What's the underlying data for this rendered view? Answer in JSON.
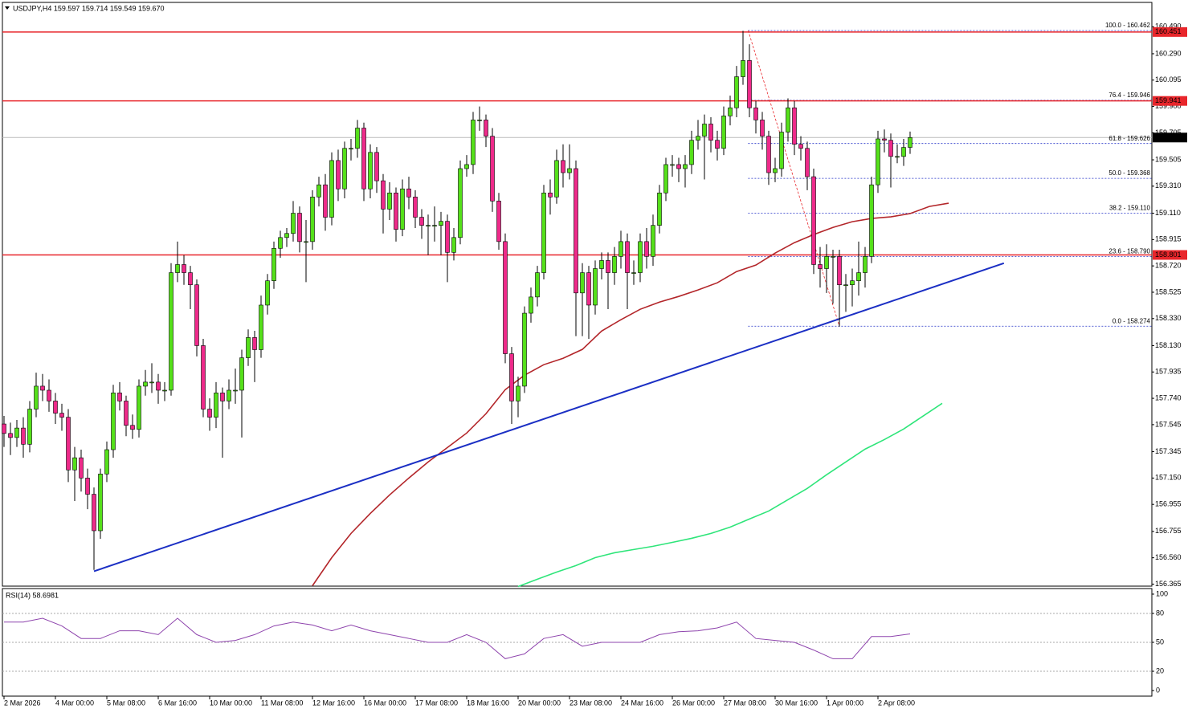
{
  "chart_data": {
    "type": "candlestick",
    "title": "USDJPY,H4 159.597 159.714 159.549 159.670",
    "categories": [
      "2 Mar 2026",
      null,
      null,
      null,
      null,
      null,
      null,
      null,
      "4 Mar 00:00",
      null,
      null,
      null,
      null,
      null,
      null,
      null,
      "5 Mar 08:00",
      null,
      null,
      null,
      null,
      null,
      null,
      null,
      "6 Mar 16:00",
      null,
      null,
      null,
      null,
      null,
      null,
      null,
      "10 Mar 00:00",
      null,
      null,
      null,
      null,
      null,
      null,
      null,
      "11 Mar 08:00",
      null,
      null,
      null,
      null,
      null,
      null,
      null,
      "12 Mar 16:00",
      null,
      null,
      null,
      null,
      null,
      null,
      null,
      "16 Mar 00:00",
      null,
      null,
      null,
      null,
      null,
      null,
      null,
      "17 Mar 08:00",
      null,
      null,
      null,
      null,
      null,
      null,
      null,
      "18 Mar 16:00",
      null,
      null,
      null,
      null,
      null,
      null,
      null,
      "20 Mar 00:00",
      null,
      null,
      null,
      null,
      null,
      null,
      null,
      "23 Mar 08:00",
      null,
      null,
      null,
      null,
      null,
      null,
      null,
      "24 Mar 16:00",
      null,
      null,
      null,
      null,
      null,
      null,
      null,
      "26 Mar 00:00",
      null,
      null,
      null,
      null,
      null,
      null,
      null,
      "27 Mar 08:00",
      null,
      null,
      null,
      null,
      null,
      null,
      null,
      "30 Mar 16:00",
      null,
      null,
      null,
      null,
      null,
      null,
      null,
      "1 Apr 00:00",
      null,
      null,
      null,
      null,
      null,
      null,
      null,
      "2 Apr 08:00",
      null,
      null,
      null,
      null,
      null
    ],
    "open": [
      157.55,
      157.48,
      157.45,
      157.52,
      157.4,
      157.66,
      157.83,
      157.8,
      157.72,
      157.63,
      157.6,
      157.21,
      157.3,
      157.15,
      157.03,
      156.76,
      157.18,
      157.36,
      157.78,
      157.72,
      157.54,
      157.51,
      157.83,
      157.86,
      157.86,
      157.8,
      157.8,
      158.67,
      158.73,
      158.67,
      158.58,
      158.13,
      157.66,
      157.6,
      157.78,
      157.72,
      157.8,
      157.8,
      158.04,
      158.19,
      158.1,
      158.43,
      158.61,
      158.85,
      158.93,
      158.96,
      159.11,
      158.9,
      158.9,
      159.23,
      159.32,
      159.08,
      159.5,
      159.29,
      159.59,
      159.59,
      159.74,
      159.29,
      159.56,
      159.35,
      159.14,
      159.26,
      158.99,
      159.29,
      159.23,
      159.08,
      159.02,
      159.02,
      159.02,
      159.05,
      158.82,
      158.93,
      159.44,
      159.47,
      159.8,
      159.8,
      159.68,
      159.2,
      158.9,
      158.07,
      157.72,
      157.83,
      158.37,
      158.49,
      158.67,
      159.26,
      159.23,
      159.5,
      159.41,
      159.44,
      158.52,
      158.67,
      158.43,
      158.7,
      158.76,
      158.67,
      158.79,
      158.9,
      158.67,
      158.67,
      158.9,
      158.79,
      159.02,
      159.26,
      159.47,
      159.47,
      159.44,
      159.47,
      159.65,
      159.68,
      159.77,
      159.65,
      159.59,
      159.83,
      159.89,
      160.12,
      160.24,
      159.89,
      159.8,
      159.68,
      159.41,
      159.44,
      159.71,
      159.89,
      159.62,
      159.59,
      159.38,
      158.73,
      158.7,
      158.79,
      158.79,
      158.58,
      158.58,
      158.61,
      158.67,
      158.79,
      159.32,
      159.66,
      159.65,
      159.53,
      159.53,
      159.597
    ],
    "high": [
      157.61,
      157.56,
      157.58,
      157.6,
      157.72,
      157.93,
      157.92,
      157.88,
      157.78,
      157.7,
      157.66,
      157.38,
      157.36,
      157.22,
      157.08,
      157.22,
      157.42,
      157.84,
      157.86,
      157.76,
      157.62,
      157.88,
      157.95,
      158.0,
      157.92,
      157.86,
      158.74,
      158.9,
      158.8,
      158.72,
      158.62,
      158.18,
      157.74,
      157.86,
      157.82,
      157.88,
      157.96,
      158.1,
      158.25,
      158.24,
      158.5,
      158.66,
      158.9,
      158.98,
      159.0,
      159.2,
      159.16,
      159.06,
      159.28,
      159.38,
      159.4,
      159.56,
      159.58,
      159.64,
      159.66,
      159.8,
      159.78,
      159.62,
      159.6,
      159.4,
      159.34,
      159.3,
      159.36,
      159.38,
      159.28,
      159.14,
      159.1,
      159.16,
      159.12,
      159.1,
      159.0,
      159.5,
      159.54,
      159.86,
      159.9,
      159.84,
      159.74,
      159.26,
      158.96,
      158.12,
      157.9,
      158.42,
      158.56,
      158.72,
      159.32,
      159.36,
      159.58,
      159.62,
      159.62,
      159.5,
      158.74,
      158.72,
      158.76,
      158.82,
      158.82,
      158.86,
      158.98,
      158.96,
      158.76,
      158.96,
      159.0,
      159.1,
      159.32,
      159.52,
      159.54,
      159.52,
      159.54,
      159.72,
      159.8,
      159.84,
      159.82,
      159.72,
      159.9,
      159.98,
      160.2,
      160.46,
      160.36,
      159.94,
      159.86,
      159.72,
      159.52,
      159.78,
      159.96,
      159.94,
      159.68,
      159.64,
      159.44,
      158.86,
      158.88,
      158.84,
      158.84,
      158.66,
      158.7,
      158.9,
      158.86,
      159.38,
      159.72,
      159.73,
      159.7,
      159.62,
      159.66,
      159.714
    ],
    "low": [
      157.38,
      157.32,
      157.38,
      157.3,
      157.34,
      157.6,
      157.72,
      157.64,
      157.55,
      157.5,
      157.12,
      156.98,
      157.05,
      156.92,
      156.47,
      156.7,
      157.12,
      157.3,
      157.65,
      157.46,
      157.44,
      157.45,
      157.76,
      157.78,
      157.7,
      157.72,
      157.76,
      158.6,
      158.58,
      158.4,
      158.05,
      157.6,
      157.5,
      157.52,
      157.3,
      157.66,
      157.7,
      157.45,
      157.98,
      157.86,
      158.04,
      158.36,
      158.55,
      158.78,
      158.86,
      158.9,
      158.82,
      158.6,
      158.84,
      159.16,
      158.98,
      159.02,
      159.2,
      159.22,
      159.5,
      159.52,
      159.2,
      159.22,
      159.26,
      158.96,
      159.06,
      158.9,
      158.94,
      159.14,
      159.0,
      158.92,
      158.8,
      158.9,
      158.8,
      158.6,
      158.76,
      158.88,
      159.38,
      159.4,
      159.72,
      159.6,
      159.12,
      158.84,
      158.0,
      157.55,
      157.6,
      157.78,
      158.3,
      158.42,
      158.62,
      159.1,
      159.18,
      159.3,
      159.36,
      158.2,
      158.2,
      158.18,
      158.36,
      158.62,
      158.4,
      158.58,
      158.7,
      158.4,
      158.58,
      158.6,
      158.7,
      158.72,
      158.96,
      159.2,
      159.38,
      159.34,
      159.3,
      159.4,
      159.58,
      159.36,
      159.56,
      159.5,
      159.54,
      159.76,
      159.82,
      160.06,
      159.82,
      159.7,
      159.58,
      159.32,
      159.34,
      159.38,
      159.64,
      159.54,
      159.5,
      159.28,
      158.66,
      158.56,
      158.52,
      158.44,
      158.27,
      158.38,
      158.42,
      158.5,
      158.56,
      158.74,
      159.26,
      159.56,
      159.3,
      159.48,
      159.46,
      159.549
    ],
    "close": [
      157.48,
      157.45,
      157.52,
      157.4,
      157.66,
      157.83,
      157.8,
      157.72,
      157.63,
      157.6,
      157.21,
      157.3,
      157.15,
      157.03,
      156.76,
      157.18,
      157.36,
      157.78,
      157.72,
      157.54,
      157.51,
      157.83,
      157.86,
      157.86,
      157.8,
      157.8,
      158.67,
      158.73,
      158.67,
      158.58,
      158.13,
      157.66,
      157.6,
      157.78,
      157.72,
      157.8,
      157.8,
      158.04,
      158.19,
      158.1,
      158.43,
      158.61,
      158.85,
      158.93,
      158.96,
      159.11,
      158.9,
      158.9,
      159.23,
      159.32,
      159.08,
      159.5,
      159.29,
      159.59,
      159.59,
      159.74,
      159.29,
      159.56,
      159.35,
      159.14,
      159.26,
      158.99,
      159.29,
      159.23,
      159.08,
      159.02,
      159.02,
      159.02,
      159.05,
      158.82,
      158.93,
      159.44,
      159.47,
      159.8,
      159.8,
      159.68,
      159.2,
      158.9,
      158.07,
      157.72,
      157.83,
      158.37,
      158.49,
      158.67,
      159.26,
      159.23,
      159.5,
      159.41,
      159.44,
      158.52,
      158.67,
      158.43,
      158.7,
      158.76,
      158.67,
      158.79,
      158.9,
      158.67,
      158.67,
      158.9,
      158.79,
      159.02,
      159.26,
      159.47,
      159.47,
      159.44,
      159.47,
      159.65,
      159.68,
      159.77,
      159.65,
      159.59,
      159.83,
      159.89,
      160.12,
      160.24,
      159.89,
      159.8,
      159.68,
      159.41,
      159.44,
      159.71,
      159.89,
      159.62,
      159.59,
      159.38,
      158.73,
      158.7,
      158.79,
      158.79,
      158.58,
      158.58,
      158.61,
      158.67,
      158.79,
      159.32,
      159.66,
      159.65,
      159.53,
      159.53,
      159.597,
      159.67
    ],
    "bull_color": "#55e01a",
    "bear_color": "#ee2a8a",
    "ylim": [
      156.35,
      160.67
    ],
    "yticks": [
      {
        "value": 160.49,
        "label": "160.490"
      },
      {
        "value": 160.29,
        "label": "160.290"
      },
      160.095,
      {
        "value": 159.9,
        "label": "159.900"
      },
      159.705,
      159.505,
      {
        "value": 159.31,
        "label": "159.310"
      },
      {
        "value": 159.11,
        "label": "159.110"
      },
      158.915,
      {
        "value": 158.72,
        "label": "158.720"
      },
      158.525,
      {
        "value": 158.33,
        "label": "158.330"
      },
      {
        "value": 158.13,
        "label": "158.130"
      },
      157.935,
      {
        "value": 157.74,
        "label": "157.740"
      },
      157.545,
      157.345,
      {
        "value": 157.15,
        "label": "157.150"
      },
      156.955,
      156.755,
      {
        "value": 156.56,
        "label": "156.560"
      },
      156.365
    ],
    "overlays": [
      {
        "color": "#b3262a",
        "x": [
          48,
          51,
          54,
          57,
          60,
          63,
          66,
          69,
          72,
          75,
          78,
          81,
          84,
          87,
          90,
          93,
          96,
          99,
          102,
          105,
          108,
          111,
          114,
          117,
          120,
          123,
          126,
          129,
          132,
          135,
          138,
          141,
          144,
          147
        ],
        "values": [
          156.353,
          156.561,
          156.74,
          156.888,
          157.025,
          157.15,
          157.269,
          157.376,
          157.483,
          157.626,
          157.804,
          157.911,
          157.989,
          158.036,
          158.102,
          158.238,
          158.322,
          158.399,
          158.452,
          158.494,
          158.542,
          158.595,
          158.678,
          158.726,
          158.815,
          158.892,
          158.952,
          159.005,
          159.047,
          159.071,
          159.083,
          159.107,
          159.16,
          159.184
        ]
      },
      {
        "color": "#2fe57a",
        "x": [
          80,
          83,
          86,
          89,
          92,
          95,
          98,
          101,
          104,
          107,
          110,
          113,
          116,
          119,
          122,
          125,
          128,
          131,
          134,
          137,
          140,
          143,
          146
        ],
        "values": [
          156.347,
          156.401,
          156.454,
          156.502,
          156.561,
          156.597,
          156.621,
          156.645,
          156.674,
          156.704,
          156.74,
          156.787,
          156.847,
          156.906,
          156.99,
          157.073,
          157.174,
          157.269,
          157.364,
          157.435,
          157.513,
          157.608,
          157.703
        ]
      }
    ],
    "trendline": {
      "color": "#1b2fc4",
      "x": [
        14,
        155.6
      ],
      "values": [
        156.46,
        158.74
      ]
    },
    "hlines": {
      "color": "#e8262b",
      "values": [
        160.451,
        159.941,
        158.801
      ]
    },
    "bid": {
      "value": 159.67,
      "label": "159.670"
    },
    "fib": {
      "color": "#2230c8",
      "x": [
        115.8,
        130
      ],
      "levels": [
        {
          "value": 160.462,
          "label": "100.0 - 160.462"
        },
        {
          "value": 159.946,
          "label": "76.4 - 159.946"
        },
        {
          "value": 159.626,
          "label": "61.8 - 159.626"
        },
        {
          "value": 159.368,
          "label": "50.0 - 159.368"
        },
        {
          "value": 159.11,
          "label": "38.2 - 159.110"
        },
        {
          "value": 158.79,
          "label": "23.6 - 158.790"
        },
        {
          "value": 158.274,
          "label": "0.0 - 158.274"
        }
      ]
    },
    "rsi": {
      "title": "RSI(14) 58.6981",
      "color": "#8e44ad",
      "ylim": [
        -5.8,
        105.8
      ],
      "yticks": [
        100,
        80,
        50,
        20,
        0
      ],
      "x": [
        0,
        3,
        6,
        9,
        12,
        15,
        18,
        21,
        24,
        27,
        30,
        33,
        36,
        39,
        42,
        45,
        48,
        51,
        54,
        57,
        60,
        63,
        66,
        69,
        72,
        75,
        78,
        81,
        84,
        87,
        90,
        93,
        96,
        99,
        102,
        105,
        108,
        111,
        114,
        117,
        120,
        123,
        126,
        129,
        132,
        135,
        138,
        141
      ],
      "values": [
        71,
        71,
        75,
        67,
        54,
        54,
        62,
        62,
        58,
        75,
        58,
        50,
        52,
        58,
        67,
        71,
        68,
        62,
        68,
        62,
        58,
        54,
        50,
        50,
        58,
        50,
        33,
        38,
        54,
        58,
        46,
        50,
        50,
        50,
        58,
        61,
        62,
        65,
        71,
        54,
        52,
        50,
        42,
        33,
        33,
        56,
        56,
        58.6981
      ]
    }
  }
}
